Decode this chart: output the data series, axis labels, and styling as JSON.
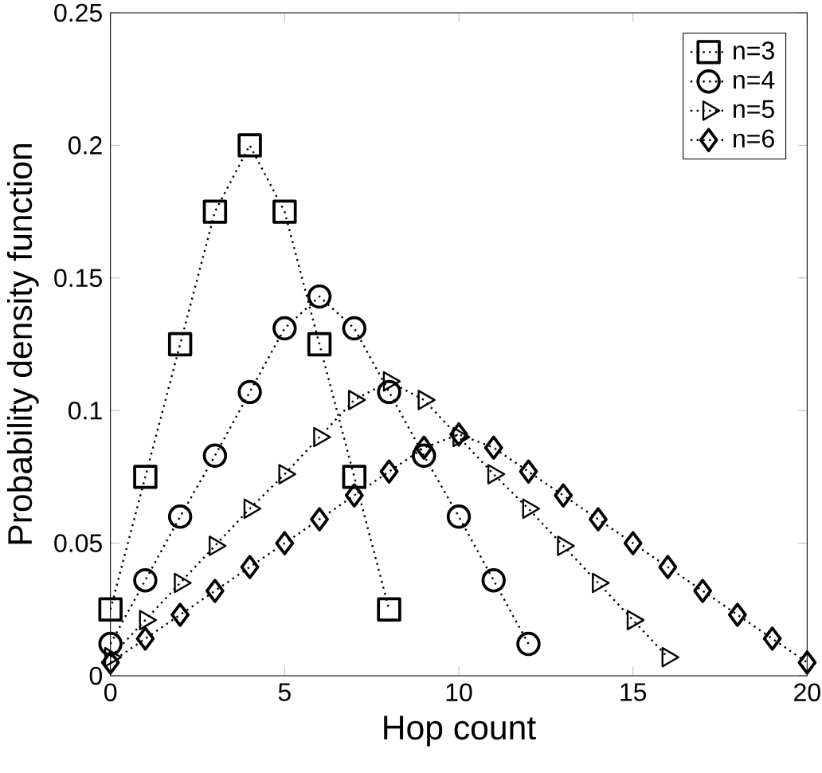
{
  "chart_data": {
    "type": "line",
    "xlabel": "Hop count",
    "ylabel": "Probability density function",
    "xlim": [
      0,
      20
    ],
    "ylim": [
      0,
      0.25
    ],
    "xticks": [
      0,
      5,
      10,
      15,
      20
    ],
    "yticks": [
      0,
      0.05,
      0.1,
      0.15,
      0.2,
      0.25
    ],
    "grid": false,
    "legend": "top right",
    "line_style": "dotted",
    "series": [
      {
        "name": "n=3",
        "color": "#000000",
        "marker": "square",
        "x": [
          0,
          1,
          2,
          3,
          4,
          5,
          6,
          7,
          8
        ],
        "values": [
          0.025,
          0.075,
          0.125,
          0.175,
          0.2,
          0.175,
          0.125,
          0.075,
          0.025
        ]
      },
      {
        "name": "n=4",
        "color": "#000000",
        "marker": "circle",
        "x": [
          0,
          1,
          2,
          3,
          4,
          5,
          6,
          7,
          8,
          9,
          10,
          11,
          12
        ],
        "values": [
          0.012,
          0.036,
          0.06,
          0.083,
          0.107,
          0.131,
          0.143,
          0.131,
          0.107,
          0.083,
          0.06,
          0.036,
          0.012
        ]
      },
      {
        "name": "n=5",
        "color": "#000000",
        "marker": "triangle",
        "x": [
          0,
          1,
          2,
          3,
          4,
          5,
          6,
          7,
          8,
          9,
          10,
          11,
          12,
          13,
          14,
          15,
          16
        ],
        "values": [
          0.007,
          0.021,
          0.035,
          0.049,
          0.063,
          0.076,
          0.09,
          0.104,
          0.111,
          0.104,
          0.09,
          0.076,
          0.063,
          0.049,
          0.035,
          0.021,
          0.007
        ]
      },
      {
        "name": "n=6",
        "color": "#000000",
        "marker": "diamond",
        "x": [
          0,
          1,
          2,
          3,
          4,
          5,
          6,
          7,
          8,
          9,
          10,
          11,
          12,
          13,
          14,
          15,
          16,
          17,
          18,
          19,
          20
        ],
        "values": [
          0.005,
          0.014,
          0.023,
          0.032,
          0.041,
          0.05,
          0.059,
          0.068,
          0.077,
          0.086,
          0.091,
          0.086,
          0.077,
          0.068,
          0.059,
          0.05,
          0.041,
          0.032,
          0.023,
          0.014,
          0.005
        ]
      }
    ]
  }
}
